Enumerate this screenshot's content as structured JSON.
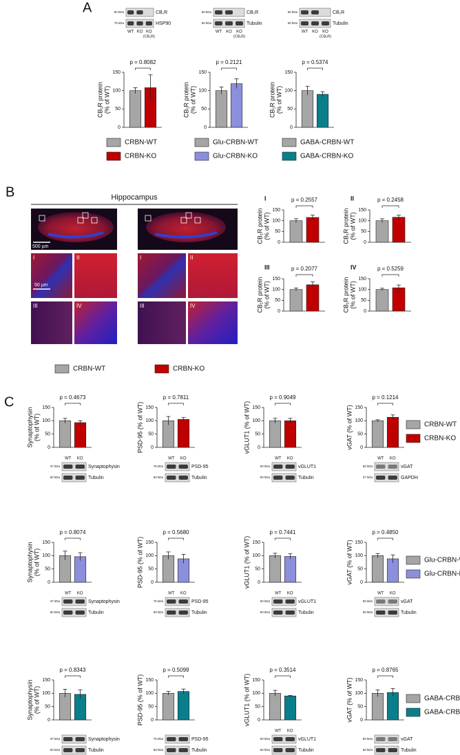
{
  "panels": [
    "A",
    "B",
    "C"
  ],
  "hippocampus_title": "Hippocampus",
  "images": {
    "region_labels": [
      "I",
      "II",
      "III",
      "IV"
    ],
    "scale_bars": [
      "500 µm",
      "50 µm"
    ]
  },
  "legends": [
    [
      {
        "name": "CRBN-WT",
        "color": "#a6a6a6"
      },
      {
        "name": "CRBN-KO",
        "color": "#c00000"
      }
    ],
    [
      {
        "name": "Glu-CRBN-WT",
        "color": "#a6a6a6"
      },
      {
        "name": "Glu-CRBN-KO",
        "color": "#8c8fdb"
      }
    ],
    [
      {
        "name": "GABA-CRBN-WT",
        "color": "#a6a6a6"
      },
      {
        "name": "GABA-CRBN-KO",
        "color": "#0a7f8c"
      }
    ],
    [
      {
        "name": "CRBN-WT",
        "color": "#a6a6a6"
      },
      {
        "name": "CRBN-KO",
        "color": "#c00000"
      }
    ],
    [
      {
        "name": "CRBN-WT",
        "color": "#a6a6a6"
      },
      {
        "name": "CRBN-KO",
        "color": "#c00000"
      }
    ],
    [
      {
        "name": "Glu-CRBN-WT",
        "color": "#a6a6a6"
      },
      {
        "name": "Glu-CRBN-KO",
        "color": "#8c8fdb"
      }
    ],
    [
      {
        "name": "GABA-CRBN-WT",
        "color": "#a6a6a6"
      },
      {
        "name": "GABA-CRBN-KO",
        "color": "#0a7f8c"
      }
    ]
  ],
  "blots": [
    {
      "markers": [
        "50 kDa",
        "75 kDa"
      ],
      "bands": [
        "CB₁R",
        "HSP90"
      ],
      "lanes": [
        "WT",
        "KO",
        "KO"
      ],
      "lane_note": "(CB₁R)"
    },
    {
      "markers": [
        "50 kDa",
        "50 kDa"
      ],
      "bands": [
        "CB₁R",
        "Tubulin"
      ],
      "lanes": [
        "WT",
        "KO",
        "KO"
      ],
      "lane_note": "(CB₁R)"
    },
    {
      "markers": [
        "50 kDa",
        "50 kDa"
      ],
      "bands": [
        "CB₁R",
        "Tubulin"
      ],
      "lanes": [
        "WT",
        "KO",
        "KO"
      ],
      "lane_note": "(CB₁R)"
    },
    {
      "markers": [
        "37 kDa",
        "50 kDa"
      ],
      "bands": [
        "Synaptophysin",
        "Tubulin"
      ],
      "lanes": [
        "WT",
        "KO"
      ]
    },
    {
      "markers": [
        "75 kDa",
        "50 kDa"
      ],
      "bands": [
        "PSD-95",
        "Tubulin"
      ],
      "lanes": [
        "WT",
        "KO"
      ]
    },
    {
      "markers": [
        "50 kDa",
        "50 kDa"
      ],
      "bands": [
        "vGLUT1",
        "Tubulin"
      ],
      "lanes": [
        "WT",
        "KO"
      ]
    },
    {
      "markers": [
        "50 kDa",
        "37 kDa"
      ],
      "bands": [
        "vGAT",
        "GAPDH"
      ],
      "lanes": [
        "WT",
        "KO"
      ]
    },
    {
      "markers": [
        "37 kDa",
        "50 kDa"
      ],
      "bands": [
        "Synaptophysin",
        "Tubulin"
      ],
      "lanes": [
        "WT",
        "KO"
      ]
    },
    {
      "markers": [
        "75 kDa",
        "50 kDa"
      ],
      "bands": [
        "PSD-95",
        "Tubulin"
      ],
      "lanes": [
        "WT",
        "KO"
      ]
    },
    {
      "markers": [
        "50 kDa",
        "50 kDa"
      ],
      "bands": [
        "vGLUT1",
        "Tubulin"
      ],
      "lanes": [
        "WT",
        "KO"
      ]
    },
    {
      "markers": [
        "50 kDa",
        "50 kDa"
      ],
      "bands": [
        "vGAT",
        "Tubulin"
      ],
      "lanes": [
        "WT",
        "KO"
      ]
    },
    {
      "markers": [
        "37 kDa",
        "50 kDa"
      ],
      "bands": [
        "Synaptophysin",
        "Tubulin"
      ]
    },
    {
      "markers": [
        "75 kDa",
        "50 kDa"
      ],
      "bands": [
        "PSD-95",
        "Tubulin"
      ]
    },
    {
      "markers": [
        "50 kDa",
        "50 kDa"
      ],
      "bands": [
        "vGLUT1",
        "Tubulin"
      ],
      "lanes": [
        "WT",
        "KO"
      ]
    },
    {
      "markers": [
        "50 kDa",
        "50 kDa"
      ],
      "bands": [
        "vGAT",
        "Tubulin"
      ]
    }
  ],
  "chart_data": [
    {
      "type": "bar",
      "ylabel": [
        "CB₁R protein",
        "(% of WT)"
      ],
      "annotation": "p = 0.8082",
      "values": [
        100,
        108
      ],
      "errors": [
        8,
        35
      ],
      "colors": [
        "#a6a6a6",
        "#c00000"
      ],
      "ylim": [
        0,
        150
      ],
      "yticks": [
        0,
        50,
        100,
        150
      ]
    },
    {
      "type": "bar",
      "ylabel": [
        "CB₁R protein",
        "(% of WT)"
      ],
      "annotation": "p = 0.2121",
      "values": [
        100,
        119
      ],
      "errors": [
        10,
        13
      ],
      "colors": [
        "#a6a6a6",
        "#8c8fdb"
      ],
      "ylim": [
        0,
        150
      ],
      "yticks": [
        0,
        50,
        100,
        150
      ]
    },
    {
      "type": "bar",
      "ylabel": [
        "CB₁R protein",
        "(% of WT)"
      ],
      "annotation": "p = 0.5374",
      "values": [
        100,
        90
      ],
      "errors": [
        12,
        7
      ],
      "colors": [
        "#a6a6a6",
        "#0a7f8c"
      ],
      "ylim": [
        0,
        150
      ],
      "yticks": [
        0,
        50,
        100,
        150
      ]
    },
    {
      "type": "bar",
      "title": "I",
      "ylabel": [
        "CB₁R protein",
        "(% of WT)"
      ],
      "annotation": "p = 0.2557",
      "values": [
        100,
        115
      ],
      "errors": [
        9,
        11
      ],
      "colors": [
        "#a6a6a6",
        "#c00000"
      ],
      "ylim": [
        0,
        150
      ],
      "yticks": [
        0,
        50,
        100,
        150
      ]
    },
    {
      "type": "bar",
      "title": "II",
      "ylabel": [
        "CB₁R protein",
        "(% of WT)"
      ],
      "annotation": "p = 0.2458",
      "values": [
        100,
        116
      ],
      "errors": [
        9,
        10
      ],
      "colors": [
        "#a6a6a6",
        "#c00000"
      ],
      "ylim": [
        0,
        150
      ],
      "yticks": [
        0,
        50,
        100,
        150
      ]
    },
    {
      "type": "bar",
      "title": "III",
      "ylabel": [
        "CB₁R protein",
        "(% of WT)"
      ],
      "annotation": "p = 0.2077",
      "values": [
        100,
        122
      ],
      "errors": [
        7,
        14
      ],
      "colors": [
        "#a6a6a6",
        "#c00000"
      ],
      "ylim": [
        0,
        150
      ],
      "yticks": [
        0,
        50,
        100,
        150
      ]
    },
    {
      "type": "bar",
      "title": "IV",
      "ylabel": [
        "CB₁R protein",
        "(% of WT)"
      ],
      "annotation": "p = 0.5259",
      "values": [
        100,
        108
      ],
      "errors": [
        6,
        13
      ],
      "colors": [
        "#a6a6a6",
        "#c00000"
      ],
      "ylim": [
        0,
        150
      ],
      "yticks": [
        0,
        50,
        100,
        150
      ]
    },
    {
      "type": "bar",
      "ylabel": [
        "Synaptophysin",
        "(% of WT)"
      ],
      "annotation": "p = 0.4673",
      "values": [
        100,
        93
      ],
      "errors": [
        9,
        7
      ],
      "colors": [
        "#a6a6a6",
        "#c00000"
      ],
      "ylim": [
        0,
        150
      ],
      "yticks": [
        0,
        50,
        100,
        150
      ]
    },
    {
      "type": "bar",
      "ylabel": [
        "PSD-95 (% of WT)"
      ],
      "annotation": "p = 0.7811",
      "values": [
        100,
        105
      ],
      "errors": [
        16,
        7
      ],
      "colors": [
        "#a6a6a6",
        "#c00000"
      ],
      "ylim": [
        0,
        150
      ],
      "yticks": [
        0,
        50,
        100,
        150
      ]
    },
    {
      "type": "bar",
      "ylabel": [
        "vGLUT1 (% of WT)"
      ],
      "annotation": "p = 0.9049",
      "values": [
        100,
        100
      ],
      "errors": [
        9,
        9
      ],
      "colors": [
        "#a6a6a6",
        "#c00000"
      ],
      "ylim": [
        0,
        150
      ],
      "yticks": [
        0,
        50,
        100,
        150
      ]
    },
    {
      "type": "bar",
      "ylabel": [
        "vGAT (% of WT)"
      ],
      "annotation": "p = 0.1214",
      "values": [
        100,
        113
      ],
      "errors": [
        4,
        9
      ],
      "colors": [
        "#a6a6a6",
        "#c00000"
      ],
      "ylim": [
        0,
        150
      ],
      "yticks": [
        0,
        50,
        100,
        150
      ]
    },
    {
      "type": "bar",
      "ylabel": [
        "Synaptophysin",
        "(% of WT)"
      ],
      "annotation": "p = 0.8074",
      "values": [
        100,
        96
      ],
      "errors": [
        17,
        15
      ],
      "colors": [
        "#a6a6a6",
        "#8c8fdb"
      ],
      "ylim": [
        0,
        150
      ],
      "yticks": [
        0,
        50,
        100,
        150
      ]
    },
    {
      "type": "bar",
      "ylabel": [
        "PSD-95 (% of WT)"
      ],
      "annotation": "p = 0.5680",
      "values": [
        100,
        88
      ],
      "errors": [
        14,
        17
      ],
      "colors": [
        "#a6a6a6",
        "#8c8fdb"
      ],
      "ylim": [
        0,
        150
      ],
      "yticks": [
        0,
        50,
        100,
        150
      ]
    },
    {
      "type": "bar",
      "ylabel": [
        "vGLUT1 (% of WT)"
      ],
      "annotation": "p = 0.7441",
      "values": [
        100,
        97
      ],
      "errors": [
        9,
        10
      ],
      "colors": [
        "#a6a6a6",
        "#8c8fdb"
      ],
      "ylim": [
        0,
        150
      ],
      "yticks": [
        0,
        50,
        100,
        150
      ]
    },
    {
      "type": "bar",
      "ylabel": [
        "vGAT (% of WT)"
      ],
      "annotation": "p = 0.4850",
      "values": [
        100,
        88
      ],
      "errors": [
        8,
        15
      ],
      "colors": [
        "#a6a6a6",
        "#8c8fdb"
      ],
      "ylim": [
        0,
        150
      ],
      "yticks": [
        0,
        50,
        100,
        150
      ]
    },
    {
      "type": "bar",
      "ylabel": [
        "Synaptophysin",
        "(% of WT)"
      ],
      "annotation": "p = 0.8343",
      "values": [
        100,
        96
      ],
      "errors": [
        15,
        17
      ],
      "colors": [
        "#a6a6a6",
        "#0a7f8c"
      ],
      "ylim": [
        0,
        150
      ],
      "yticks": [
        0,
        50,
        100,
        150
      ]
    },
    {
      "type": "bar",
      "ylabel": [
        "PSD-95 (% of WT)"
      ],
      "annotation": "p = 0.5099",
      "values": [
        100,
        107
      ],
      "errors": [
        7,
        9
      ],
      "colors": [
        "#a6a6a6",
        "#0a7f8c"
      ],
      "ylim": [
        0,
        150
      ],
      "yticks": [
        0,
        50,
        100,
        150
      ]
    },
    {
      "type": "bar",
      "ylabel": [
        "vGLUT1 (% of WT)"
      ],
      "annotation": "p = 0.3514",
      "values": [
        100,
        90
      ],
      "errors": [
        11,
        2
      ],
      "colors": [
        "#a6a6a6",
        "#0a7f8c"
      ],
      "ylim": [
        0,
        150
      ],
      "yticks": [
        0,
        50,
        100,
        150
      ]
    },
    {
      "type": "bar",
      "ylabel": [
        "vGAT (% of WT)"
      ],
      "annotation": "p = 0.8765",
      "values": [
        100,
        103
      ],
      "errors": [
        13,
        15
      ],
      "colors": [
        "#a6a6a6",
        "#0a7f8c"
      ],
      "ylim": [
        0,
        150
      ],
      "yticks": [
        0,
        50,
        100,
        150
      ]
    }
  ]
}
